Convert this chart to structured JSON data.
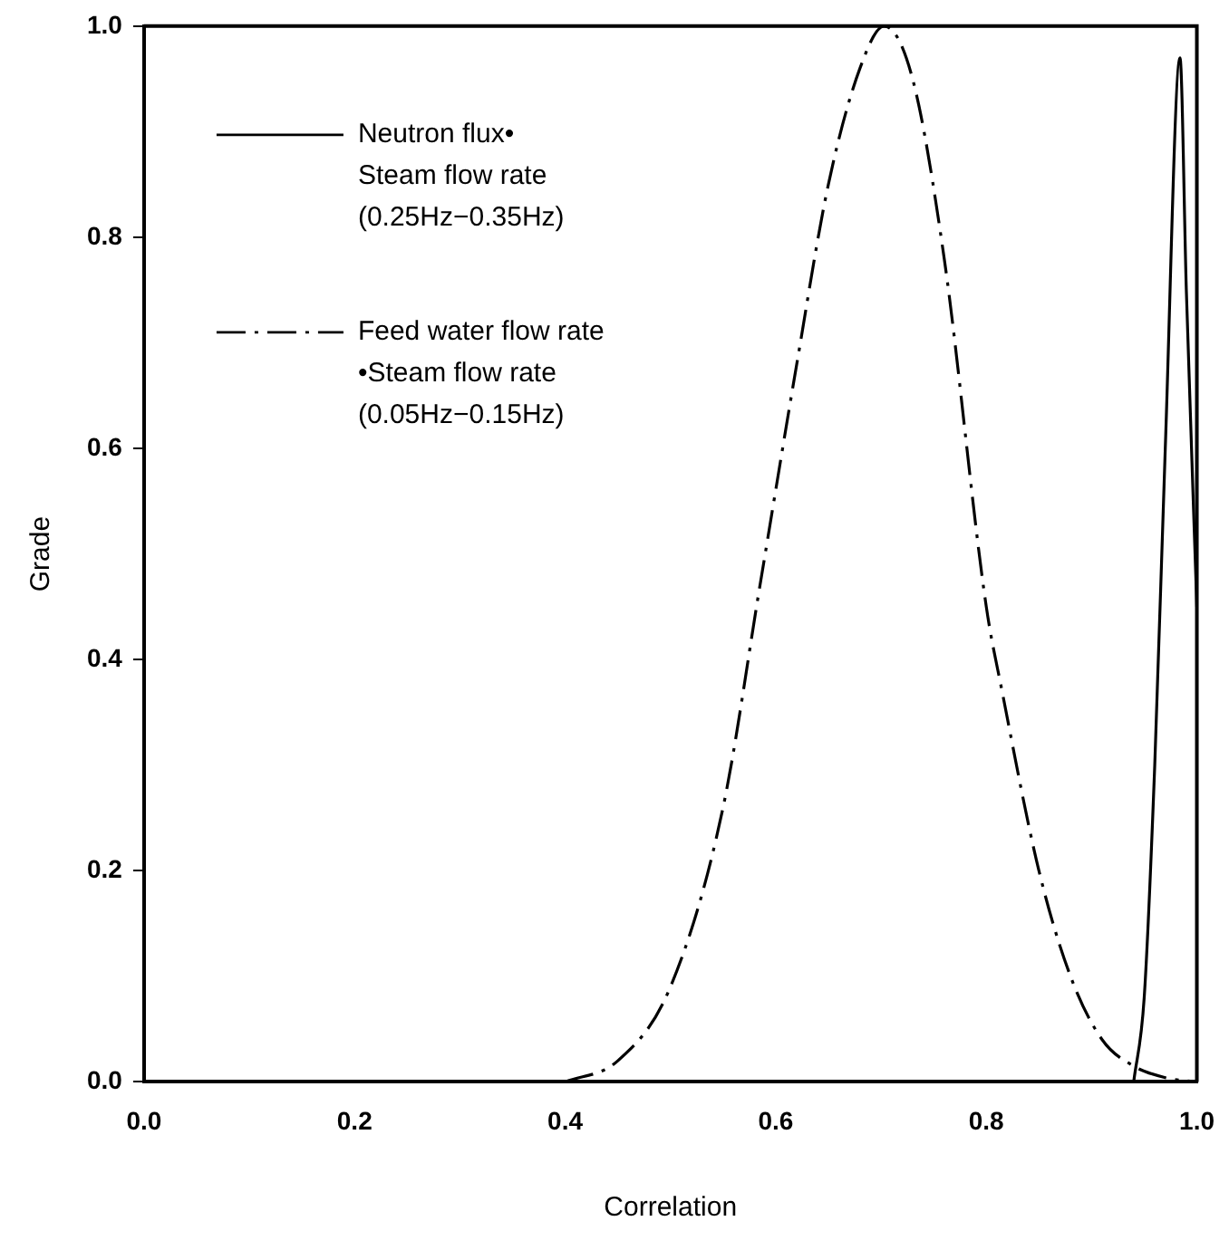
{
  "chart_data": {
    "type": "line",
    "xlabel": "Correlation",
    "ylabel": "Grade",
    "xlim": [
      0,
      1
    ],
    "ylim": [
      0,
      1
    ],
    "xticks": [
      {
        "value": 0,
        "label": "0.0"
      },
      {
        "value": 0.2,
        "label": "0.2"
      },
      {
        "value": 0.4,
        "label": "0.4"
      },
      {
        "value": 0.6,
        "label": "0.6"
      },
      {
        "value": 0.8,
        "label": "0.8"
      },
      {
        "value": 1,
        "label": "1.0"
      }
    ],
    "yticks": [
      {
        "value": 0,
        "label": "0.0"
      },
      {
        "value": 0.2,
        "label": "0.2"
      },
      {
        "value": 0.4,
        "label": "0.4"
      },
      {
        "value": 0.6,
        "label": "0.6"
      },
      {
        "value": 0.8,
        "label": "0.8"
      },
      {
        "value": 1,
        "label": "1.0"
      }
    ],
    "grid": false,
    "legend": "top left",
    "marker": "none",
    "series": [
      {
        "name": "Neutron flux• Steam flow rate (0.25Hz−0.35Hz)",
        "color": "#000000",
        "line_style": "solid",
        "x": [
          0.94,
          0.95,
          0.96,
          0.97,
          0.984,
          0.99,
          1.0
        ],
        "values": [
          0,
          0.08,
          0.3,
          0.6,
          0.97,
          0.75,
          0.45
        ]
      },
      {
        "name": "Feed water flow rate •Steam flow rate (0.05Hz−0.15Hz)",
        "color": "#000000",
        "line_style": "dashed",
        "x": [
          0.4,
          0.45,
          0.5,
          0.55,
          0.585,
          0.62,
          0.65,
          0.68,
          0.703,
          0.73,
          0.76,
          0.8,
          0.815,
          0.85,
          0.88,
          0.91,
          0.94,
          0.97,
          1.0
        ],
        "values": [
          0,
          0.02,
          0.09,
          0.26,
          0.47,
          0.68,
          0.85,
          0.96,
          1.0,
          0.95,
          0.78,
          0.45,
          0.37,
          0.2,
          0.1,
          0.04,
          0.015,
          0.004,
          0
        ]
      }
    ]
  }
}
